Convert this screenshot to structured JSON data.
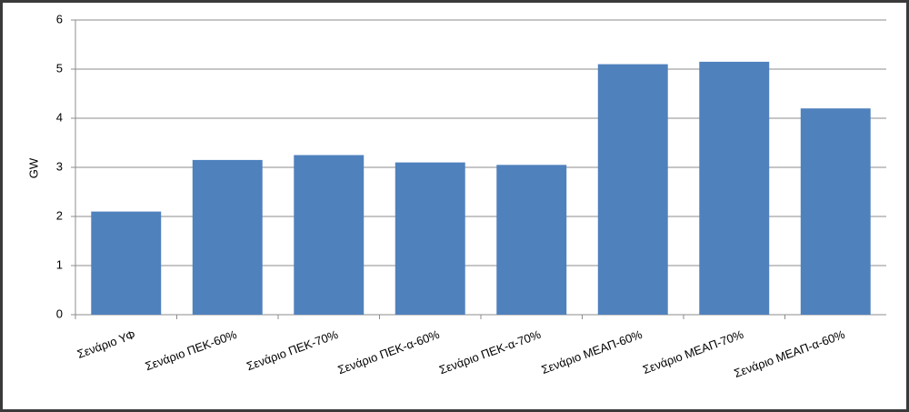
{
  "chart_data": {
    "type": "bar",
    "y_label": "GW",
    "categories": [
      "Σενάριο ΥΦ",
      "Σενάριο ΠΕΚ-60%",
      "Σενάριο ΠΕΚ-70%",
      "Σενάριο ΠΕΚ-α-60%",
      "Σενάριο ΠΕΚ-α-70%",
      "Σενάριο ΜΕΑΠ-60%",
      "Σενάριο ΜΕΑΠ-70%",
      "Σενάριο ΜΕΑΠ-α-60%"
    ],
    "values": [
      2.1,
      3.15,
      3.25,
      3.1,
      3.05,
      5.1,
      5.15,
      4.2
    ],
    "color": "#4f81bd",
    "ylim": [
      0,
      6
    ],
    "yticks": [
      0,
      1,
      2,
      3,
      4,
      5,
      6
    ],
    "grid": true
  }
}
